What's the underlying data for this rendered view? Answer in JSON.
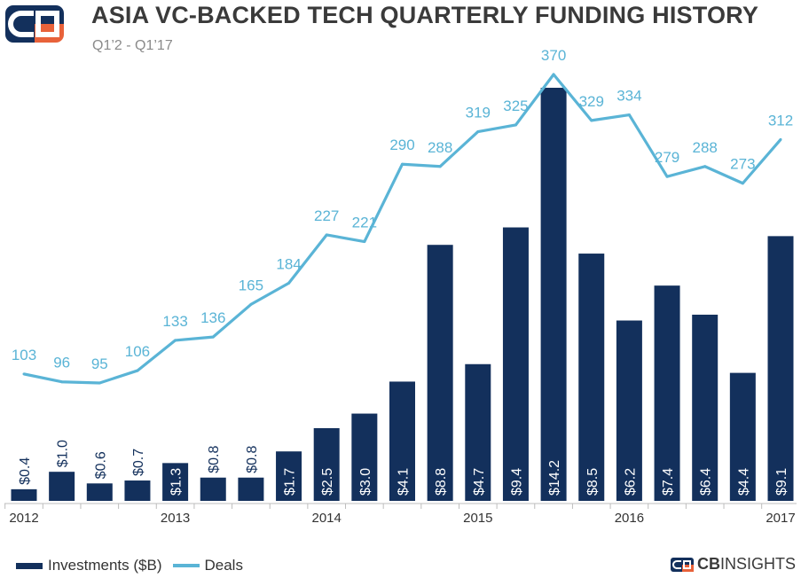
{
  "header": {
    "title": "ASIA VC-BACKED TECH QUARTERLY FUNDING HISTORY",
    "subtitle": "Q1’2 - Q1’17"
  },
  "brand": {
    "bold": "CB",
    "rest": "INSIGHTS"
  },
  "colors": {
    "bar": "#13305c",
    "line": "#5ab4d6",
    "logo_orange": "#e8623a"
  },
  "chart_data": {
    "type": "bar+line",
    "title": "ASIA VC-BACKED TECH QUARTERLY FUNDING HISTORY",
    "subtitle": "Q1’2 - Q1’17",
    "x_axis_labels": [
      {
        "index": 0,
        "label": "2012"
      },
      {
        "index": 4,
        "label": "2013"
      },
      {
        "index": 8,
        "label": "2014"
      },
      {
        "index": 12,
        "label": "2015"
      },
      {
        "index": 16,
        "label": "2016"
      },
      {
        "index": 20,
        "label": "2017"
      }
    ],
    "series": [
      {
        "name": "Investments ($B)",
        "kind": "bar",
        "values": [
          0.4,
          1.0,
          0.6,
          0.7,
          1.3,
          0.8,
          0.8,
          1.7,
          2.5,
          3.0,
          4.1,
          8.8,
          4.7,
          9.4,
          14.2,
          8.5,
          6.2,
          7.4,
          6.4,
          4.4,
          9.1
        ],
        "labels": [
          "$0.4",
          "$1.0",
          "$0.6",
          "$0.7",
          "$1.3",
          "$0.8",
          "$0.8",
          "$1.7",
          "$2.5",
          "$3.0",
          "$4.1",
          "$8.8",
          "$4.7",
          "$9.4",
          "$14.2",
          "$8.5",
          "$6.2",
          "$7.4",
          "$6.4",
          "$4.4",
          "$9.1"
        ]
      },
      {
        "name": "Deals",
        "kind": "line",
        "values": [
          103,
          96,
          95,
          106,
          133,
          136,
          165,
          184,
          227,
          221,
          290,
          288,
          319,
          325,
          370,
          329,
          334,
          279,
          288,
          273,
          312
        ],
        "labels": [
          "103",
          "96",
          "95",
          "106",
          "133",
          "136",
          "165",
          "184",
          "227",
          "221",
          "290",
          "288",
          "319",
          "325",
          "370",
          "329",
          "334",
          "279",
          "288",
          "273",
          "312"
        ]
      }
    ],
    "legend": {
      "position": "bottom-left"
    },
    "grid": false
  }
}
